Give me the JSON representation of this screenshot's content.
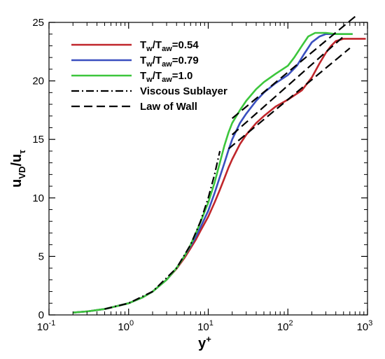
{
  "chart_data": {
    "type": "line",
    "xscale": "log",
    "xlim": [
      0.1,
      1000
    ],
    "ylim": [
      0,
      25
    ],
    "x_ticks": [
      0.1,
      1,
      10,
      100,
      1000
    ],
    "x_tick_labels": [
      {
        "base": "10",
        "exp": "-1"
      },
      {
        "base": "10",
        "exp": "0"
      },
      {
        "base": "10",
        "exp": "1"
      },
      {
        "base": "10",
        "exp": "2"
      },
      {
        "base": "10",
        "exp": "3"
      }
    ],
    "y_ticks": [
      0,
      5,
      10,
      15,
      20,
      25
    ],
    "y_tick_labels": [
      "0",
      "5",
      "10",
      "15",
      "20",
      "25"
    ],
    "xlabel": {
      "base": "y",
      "sup": "+"
    },
    "ylabel": {
      "main": "u",
      "sub1": "VD",
      "mid": "/u",
      "sub2": "τ"
    },
    "grid": false,
    "legend_position": "top-left",
    "series": [
      {
        "name": {
          "a": "T",
          "a_sub": "w",
          "b": "/T",
          "b_sub": "aw",
          "rest": "=0.54"
        },
        "color": "#c0262b",
        "dash": "solid",
        "points": [
          [
            0.2,
            0.2
          ],
          [
            0.3,
            0.3
          ],
          [
            0.5,
            0.5
          ],
          [
            1,
            1
          ],
          [
            1.5,
            1.5
          ],
          [
            2,
            2
          ],
          [
            3,
            3
          ],
          [
            4,
            3.95
          ],
          [
            5,
            4.85
          ],
          [
            6,
            5.7
          ],
          [
            7,
            6.45
          ],
          [
            8,
            7.2
          ],
          [
            10,
            8.4
          ],
          [
            12,
            9.6
          ],
          [
            14,
            10.7
          ],
          [
            16,
            11.7
          ],
          [
            18,
            12.6
          ],
          [
            20,
            13.3
          ],
          [
            25,
            14.6
          ],
          [
            30,
            15.4
          ],
          [
            40,
            16.4
          ],
          [
            50,
            17.0
          ],
          [
            70,
            17.8
          ],
          [
            100,
            18.4
          ],
          [
            150,
            19.2
          ],
          [
            200,
            20.3
          ],
          [
            250,
            21.5
          ],
          [
            300,
            22.4
          ],
          [
            350,
            23.0
          ],
          [
            400,
            23.4
          ],
          [
            500,
            23.6
          ],
          [
            700,
            23.6
          ],
          [
            950,
            23.6
          ]
        ]
      },
      {
        "name": {
          "a": "T",
          "a_sub": "w",
          "b": "/T",
          "b_sub": "aw",
          "rest": "=0.79"
        },
        "color": "#3a4fbf",
        "dash": "solid",
        "points": [
          [
            0.2,
            0.2
          ],
          [
            0.3,
            0.3
          ],
          [
            0.5,
            0.5
          ],
          [
            1,
            1
          ],
          [
            1.5,
            1.5
          ],
          [
            2,
            2
          ],
          [
            3,
            3
          ],
          [
            4,
            4
          ],
          [
            5,
            5
          ],
          [
            6,
            5.9
          ],
          [
            7,
            6.7
          ],
          [
            8,
            7.5
          ],
          [
            10,
            8.9
          ],
          [
            12,
            10.4
          ],
          [
            14,
            11.8
          ],
          [
            16,
            13.0
          ],
          [
            18,
            14.1
          ],
          [
            20,
            15.0
          ],
          [
            25,
            16.4
          ],
          [
            30,
            17.2
          ],
          [
            40,
            18.3
          ],
          [
            50,
            19.0
          ],
          [
            70,
            19.8
          ],
          [
            100,
            20.5
          ],
          [
            130,
            21.3
          ],
          [
            160,
            22.3
          ],
          [
            200,
            23.3
          ],
          [
            250,
            23.8
          ],
          [
            300,
            24.0
          ],
          [
            400,
            24.0
          ],
          [
            650,
            24.0
          ]
        ]
      },
      {
        "name": {
          "a": "T",
          "a_sub": "w",
          "b": "/T",
          "b_sub": "aw",
          "rest": "=1.0"
        },
        "color": "#3cc63c",
        "dash": "solid",
        "points": [
          [
            0.2,
            0.2
          ],
          [
            0.3,
            0.3
          ],
          [
            0.5,
            0.5
          ],
          [
            1,
            1
          ],
          [
            1.5,
            1.5
          ],
          [
            2,
            2
          ],
          [
            3,
            3
          ],
          [
            4,
            4
          ],
          [
            5,
            5
          ],
          [
            6,
            6
          ],
          [
            7,
            7
          ],
          [
            8,
            7.95
          ],
          [
            10,
            9.6
          ],
          [
            12,
            11.3
          ],
          [
            14,
            13.0
          ],
          [
            16,
            14.5
          ],
          [
            18,
            15.6
          ],
          [
            20,
            16.4
          ],
          [
            25,
            17.5
          ],
          [
            30,
            18.3
          ],
          [
            40,
            19.3
          ],
          [
            50,
            19.9
          ],
          [
            70,
            20.6
          ],
          [
            100,
            21.3
          ],
          [
            120,
            22.0
          ],
          [
            150,
            23.0
          ],
          [
            180,
            23.8
          ],
          [
            220,
            24.1
          ],
          [
            300,
            24.1
          ],
          [
            400,
            24.0
          ],
          [
            650,
            24.0
          ]
        ]
      },
      {
        "name": {
          "text": "Viscous Sublayer"
        },
        "color": "#000000",
        "dash": "dashdot",
        "points": [
          [
            0.5,
            0.5
          ],
          [
            1,
            1
          ],
          [
            2,
            2
          ],
          [
            4,
            4
          ],
          [
            6,
            6
          ],
          [
            8,
            8
          ],
          [
            10,
            10
          ],
          [
            12,
            12
          ],
          [
            14,
            14
          ]
        ]
      },
      {
        "name": {
          "text": "Law of Wall"
        },
        "color": "#000000",
        "dash": "dash",
        "segments": [
          [
            [
              20,
              16.8
            ],
            [
              700,
              25.5
            ]
          ],
          [
            [
              18,
              14.2
            ],
            [
              600,
              22.8
            ]
          ],
          [
            [
              20,
              15.4
            ],
            [
              500,
              23.8
            ]
          ]
        ]
      }
    ]
  }
}
